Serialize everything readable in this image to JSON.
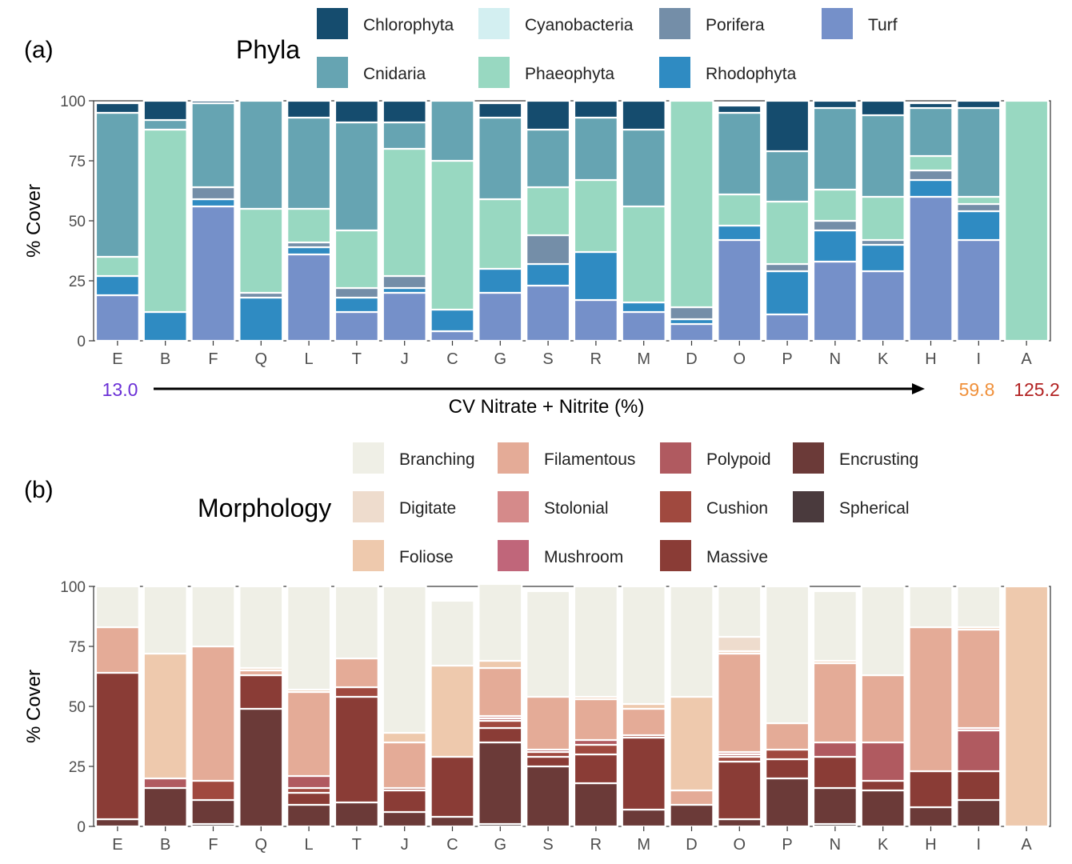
{
  "panel_a": {
    "label": "(a)",
    "legend_title": "Phyla",
    "ylabel": "% Cover",
    "cv_low": "13.0",
    "cv_mid": "59.8",
    "cv_high": "125.2",
    "cv_axis_label": "CV Nitrate + Nitrite (%)"
  },
  "panel_b": {
    "label": "(b)",
    "legend_title": "Morphology",
    "ylabel": "% Cover"
  },
  "colors": {
    "cv_low": "#6a2fd6",
    "cv_mid": "#f0903a",
    "cv_high": "#b22222"
  },
  "chart_data": [
    {
      "type": "bar",
      "stacked": true,
      "ylabel": "% Cover",
      "ylim": [
        0,
        100
      ],
      "yticks": [
        0,
        25,
        50,
        75,
        100
      ],
      "categories": [
        "E",
        "B",
        "F",
        "Q",
        "L",
        "T",
        "J",
        "C",
        "G",
        "S",
        "R",
        "M",
        "D",
        "O",
        "P",
        "N",
        "K",
        "H",
        "I",
        "A"
      ],
      "legend_position": "top",
      "series": [
        {
          "name": "Turf",
          "color": "#7590c9",
          "values": [
            19,
            0,
            56,
            0,
            36,
            12,
            20,
            4,
            20,
            23,
            17,
            12,
            7,
            42,
            11,
            33,
            29,
            60,
            42,
            0
          ]
        },
        {
          "name": "Rhodophyta",
          "color": "#2f8bc2",
          "values": [
            8,
            12,
            3,
            18,
            3,
            6,
            2,
            9,
            10,
            9,
            20,
            4,
            2,
            6,
            18,
            13,
            11,
            7,
            12,
            0
          ]
        },
        {
          "name": "Porifera",
          "color": "#748ea8",
          "values": [
            0,
            0,
            5,
            2,
            2,
            4,
            5,
            0,
            0,
            12,
            0,
            0,
            5,
            0,
            3,
            4,
            2,
            4,
            3,
            0
          ]
        },
        {
          "name": "Phaeophyta",
          "color": "#98d8c1",
          "values": [
            8,
            76,
            0,
            35,
            14,
            24,
            53,
            62,
            29,
            20,
            30,
            40,
            86,
            13,
            26,
            13,
            18,
            6,
            3,
            100
          ]
        },
        {
          "name": "Cyanobacteria",
          "color": "#d3eff1",
          "values": [
            0,
            0,
            0,
            0,
            0,
            0,
            0,
            0,
            0,
            0,
            0,
            0,
            0,
            0,
            0,
            0,
            0,
            0,
            0,
            0
          ]
        },
        {
          "name": "Cnidaria",
          "color": "#66a4b2",
          "values": [
            60,
            4,
            35,
            45,
            38,
            45,
            11,
            25,
            34,
            24,
            26,
            32,
            0,
            34,
            21,
            34,
            34,
            20,
            37,
            0
          ]
        },
        {
          "name": "Chlorophyta",
          "color": "#154c6e",
          "values": [
            4,
            8,
            1,
            0,
            7,
            9,
            9,
            0,
            6,
            12,
            7,
            12,
            0,
            3,
            21,
            3,
            6,
            2,
            3,
            0
          ]
        }
      ]
    },
    {
      "type": "bar",
      "stacked": true,
      "ylabel": "% Cover",
      "ylim": [
        0,
        100
      ],
      "yticks": [
        0,
        25,
        50,
        75,
        100
      ],
      "categories": [
        "E",
        "B",
        "F",
        "Q",
        "L",
        "T",
        "J",
        "C",
        "G",
        "S",
        "R",
        "M",
        "D",
        "O",
        "P",
        "N",
        "K",
        "H",
        "I",
        "A"
      ],
      "legend_position": "top",
      "series": [
        {
          "name": "Spherical",
          "color": "#4a3a3d",
          "values": [
            0,
            0,
            1,
            0,
            0,
            0,
            0,
            0,
            1,
            0,
            0,
            0,
            0,
            0,
            0,
            1,
            0,
            0,
            0,
            0
          ]
        },
        {
          "name": "Encrusting",
          "color": "#6b3a38",
          "values": [
            3,
            16,
            10,
            49,
            9,
            10,
            6,
            4,
            34,
            25,
            18,
            7,
            9,
            3,
            20,
            15,
            15,
            8,
            11,
            0
          ]
        },
        {
          "name": "Massive",
          "color": "#8a3c36",
          "values": [
            61,
            0,
            0,
            14,
            5,
            44,
            9,
            25,
            6,
            4,
            12,
            30,
            0,
            24,
            8,
            13,
            4,
            15,
            12,
            0
          ]
        },
        {
          "name": "Cushion",
          "color": "#a0493f",
          "values": [
            0,
            0,
            8,
            0,
            2,
            4,
            1,
            0,
            3,
            2,
            4,
            1,
            0,
            2,
            4,
            0,
            0,
            0,
            0,
            0
          ]
        },
        {
          "name": "Mushroom",
          "color": "#c0667a",
          "values": [
            0,
            0,
            0,
            0,
            0,
            0,
            0,
            0,
            0,
            0,
            0,
            0,
            0,
            0,
            0,
            0,
            0,
            0,
            0,
            0
          ]
        },
        {
          "name": "Polypoid",
          "color": "#b05a60",
          "values": [
            0,
            4,
            0,
            0,
            5,
            0,
            0,
            0,
            1,
            1,
            2,
            0,
            0,
            1,
            0,
            6,
            16,
            0,
            17,
            0
          ]
        },
        {
          "name": "Stolonial",
          "color": "#d58a8a",
          "values": [
            0,
            0,
            0,
            0,
            0,
            0,
            0,
            0,
            1,
            0,
            0,
            0,
            0,
            1,
            0,
            0,
            0,
            0,
            1,
            0
          ]
        },
        {
          "name": "Filamentous",
          "color": "#e4ab97",
          "values": [
            19,
            0,
            56,
            2,
            35,
            12,
            19,
            0,
            20,
            22,
            17,
            11,
            6,
            41,
            11,
            33,
            28,
            60,
            41,
            0
          ]
        },
        {
          "name": "Foliose",
          "color": "#eec9ad",
          "values": [
            0,
            52,
            0,
            1,
            1,
            0,
            4,
            38,
            3,
            0,
            1,
            2,
            39,
            1,
            0,
            1,
            0,
            0,
            1,
            100
          ]
        },
        {
          "name": "Digitate",
          "color": "#eedccd",
          "values": [
            0,
            0,
            0,
            0,
            0,
            0,
            0,
            0,
            0,
            0,
            0,
            0,
            0,
            6,
            0,
            0,
            0,
            0,
            0,
            0
          ]
        },
        {
          "name": "Branching",
          "color": "#efefe6",
          "values": [
            17,
            28,
            25,
            34,
            43,
            30,
            61,
            27,
            32,
            44,
            46,
            49,
            46,
            21,
            57,
            29,
            37,
            17,
            17,
            0
          ]
        }
      ]
    }
  ]
}
